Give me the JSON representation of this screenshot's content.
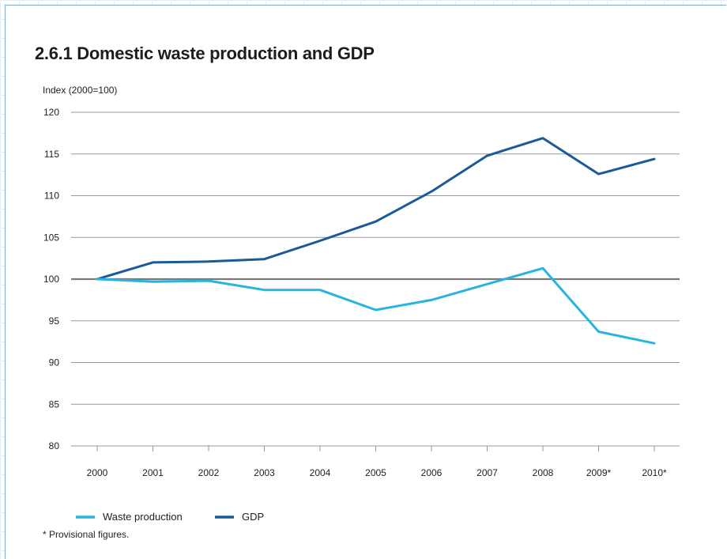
{
  "chart_data": {
    "type": "line",
    "title": "2.6.1  Domestic waste production and GDP",
    "ylabel": "Index (2000=100)",
    "xlabel": "",
    "categories": [
      "2000",
      "2001",
      "2002",
      "2003",
      "2004",
      "2005",
      "2006",
      "2007",
      "2008",
      "2009*",
      "2010*"
    ],
    "ylim": [
      80,
      120
    ],
    "yticks": [
      80,
      85,
      90,
      95,
      100,
      105,
      110,
      115,
      120
    ],
    "grid": "horizontal",
    "reference_line": 100,
    "series": [
      {
        "name": "Waste production",
        "color": "#29b4e0",
        "values": [
          100,
          99.7,
          99.8,
          98.7,
          98.7,
          96.3,
          97.5,
          99.4,
          101.3,
          93.7,
          92.3
        ]
      },
      {
        "name": "GDP",
        "color": "#1b5a99",
        "values": [
          100,
          102.0,
          102.1,
          102.4,
          104.6,
          106.9,
          110.5,
          114.8,
          116.9,
          112.6,
          114.4
        ]
      }
    ],
    "legend_position": "bottom-left",
    "note": "* Provisional figures."
  }
}
